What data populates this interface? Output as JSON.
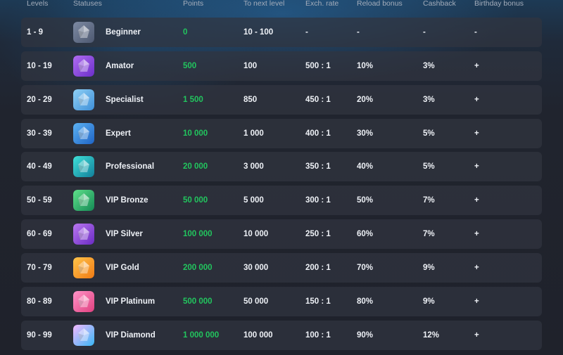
{
  "headers": {
    "levels": "Levels",
    "statuses": "Statuses",
    "points": "Points",
    "to_next": "To next level",
    "exch_rate": "Exch. rate",
    "reload": "Reload bonus",
    "cashback": "Cashback",
    "birthday": "Birthday bonus"
  },
  "colors": {
    "points_green": "#22c55e",
    "row_bg": "#2e323e",
    "header_text": "#a4adbb"
  },
  "rows": [
    {
      "levels": "1 - 9",
      "status": "Beginner",
      "points": "0",
      "to_next": "10 - 100",
      "exch": "-",
      "reload": "-",
      "cashback": "-",
      "birthday": "-",
      "icon": "beginner-icon",
      "icon_colors": [
        "#7d8aa3",
        "#4d5870"
      ]
    },
    {
      "levels": "10 - 19",
      "status": "Amator",
      "points": "500",
      "to_next": "100",
      "exch": "500 : 1",
      "reload": "10%",
      "cashback": "3%",
      "birthday": "+",
      "icon": "amator-icon",
      "icon_colors": [
        "#b06cf0",
        "#6b2fc9"
      ]
    },
    {
      "levels": "20 - 29",
      "status": "Specialist",
      "points": "1 500",
      "to_next": "850",
      "exch": "450 : 1",
      "reload": "20%",
      "cashback": "3%",
      "birthday": "+",
      "icon": "specialist-icon",
      "icon_colors": [
        "#8fd0f5",
        "#3f8fd8"
      ]
    },
    {
      "levels": "30 - 39",
      "status": "Expert",
      "points": "10 000",
      "to_next": "1 000",
      "exch": "400 : 1",
      "reload": "30%",
      "cashback": "5%",
      "birthday": "+",
      "icon": "expert-icon",
      "icon_colors": [
        "#5cb2f2",
        "#1f64c6"
      ]
    },
    {
      "levels": "40 - 49",
      "status": "Professional",
      "points": "20 000",
      "to_next": "3 000",
      "exch": "350 : 1",
      "reload": "40%",
      "cashback": "5%",
      "birthday": "+",
      "icon": "professional-icon",
      "icon_colors": [
        "#3fe0d8",
        "#127f9a"
      ]
    },
    {
      "levels": "50 - 59",
      "status": "VIP Bronze",
      "points": "50 000",
      "to_next": "5 000",
      "exch": "300 : 1",
      "reload": "50%",
      "cashback": "7%",
      "birthday": "+",
      "icon": "vip-bronze-icon",
      "icon_colors": [
        "#5fe08a",
        "#148a55"
      ]
    },
    {
      "levels": "60 - 69",
      "status": "VIP Silver",
      "points": "100 000",
      "to_next": "10 000",
      "exch": "250 : 1",
      "reload": "60%",
      "cashback": "7%",
      "birthday": "+",
      "icon": "vip-silver-icon",
      "icon_colors": [
        "#b977f0",
        "#6a2bc2"
      ]
    },
    {
      "levels": "70 - 79",
      "status": "VIP Gold",
      "points": "200 000",
      "to_next": "30 000",
      "exch": "200 : 1",
      "reload": "70%",
      "cashback": "9%",
      "birthday": "+",
      "icon": "vip-gold-icon",
      "icon_colors": [
        "#ffc44a",
        "#f07a14"
      ]
    },
    {
      "levels": "80 - 89",
      "status": "VIP Platinum",
      "points": "500 000",
      "to_next": "50 000",
      "exch": "150 : 1",
      "reload": "80%",
      "cashback": "9%",
      "birthday": "+",
      "icon": "vip-platinum-icon",
      "icon_colors": [
        "#ff94c8",
        "#e0407f"
      ]
    },
    {
      "levels": "90 - 99",
      "status": "VIP Diamond",
      "points": "1 000 000",
      "to_next": "100 000",
      "exch": "100 : 1",
      "reload": "90%",
      "cashback": "12%",
      "birthday": "+",
      "icon": "vip-diamond-icon",
      "icon_colors": [
        "#f4b8ff",
        "#38b7f5"
      ]
    }
  ]
}
